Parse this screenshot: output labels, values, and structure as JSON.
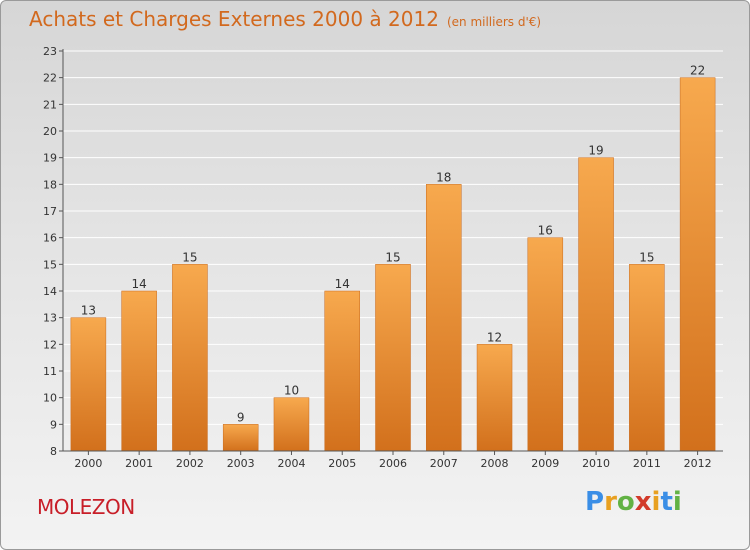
{
  "title": "Achats et Charges Externes 2000 à 2012",
  "subtitle": "(en milliers d'€)",
  "town": "MOLEZON",
  "brand": {
    "letters": [
      "P",
      "r",
      "o",
      "x",
      "i",
      "t",
      "i"
    ],
    "colors": [
      "#3a8ee6",
      "#e8a020",
      "#62b244",
      "#d23a2a",
      "#e8a020",
      "#3a8ee6",
      "#62b244"
    ]
  },
  "colors": {
    "bar_top": "#f7a94e",
    "bar_bottom": "#d2701c",
    "title": "#d2691e",
    "town": "#c81e28"
  },
  "chart_data": {
    "type": "bar",
    "categories": [
      "2000",
      "2001",
      "2002",
      "2003",
      "2004",
      "2005",
      "2006",
      "2007",
      "2008",
      "2009",
      "2010",
      "2011",
      "2012"
    ],
    "values": [
      13,
      14,
      15,
      9,
      10,
      14,
      15,
      18,
      12,
      16,
      19,
      15,
      22
    ],
    "ylim": [
      8,
      23
    ],
    "yticks": [
      8,
      9,
      10,
      11,
      12,
      13,
      14,
      15,
      16,
      17,
      18,
      19,
      20,
      21,
      22,
      23
    ],
    "grid": true
  }
}
